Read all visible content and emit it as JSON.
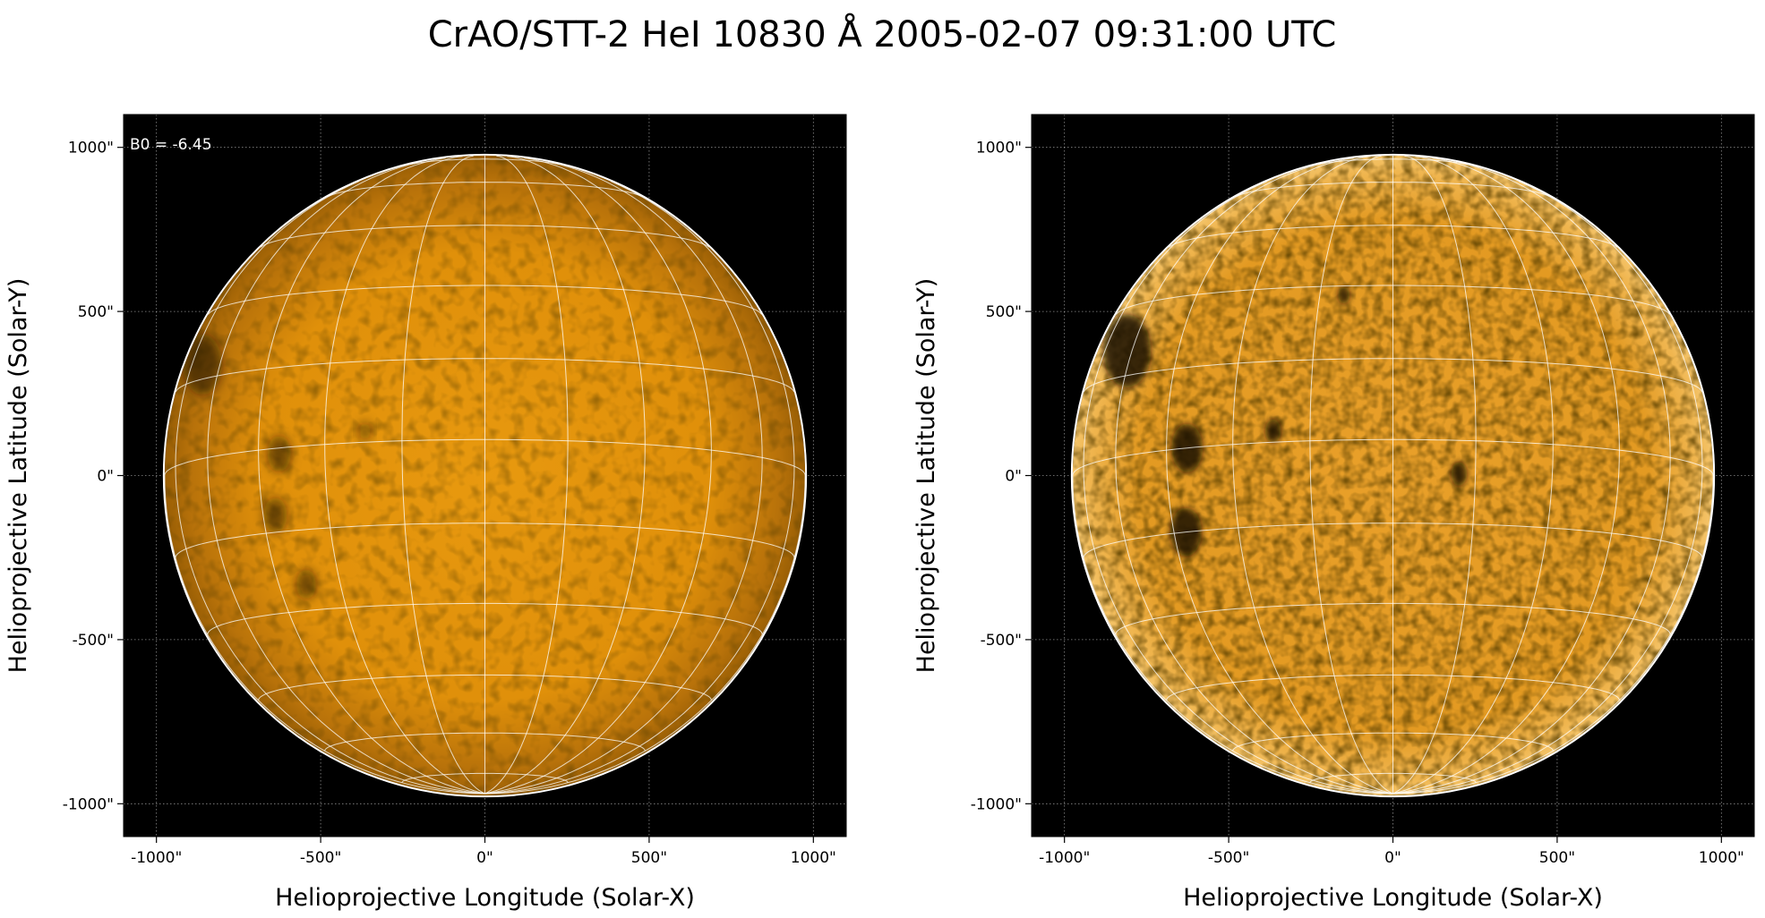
{
  "figure": {
    "title": "CrAO/STT-2 HeI 10830 Å 2005-02-07 09:31:00 UTC"
  },
  "colors": {
    "background": "#000000",
    "disk_base": "#e0900a",
    "disk_limb": "#9a5f05",
    "grid_line": "#ffffff",
    "limb_circle": "#ffffff",
    "dark_feature": "#1a0d02"
  },
  "chart_data": [
    {
      "type": "heatmap",
      "panel": "left",
      "title": "",
      "xlabel": "Helioprojective Longitude (Solar-X)",
      "ylabel": "Helioprojective Latitude (Solar-Y)",
      "xlim": [
        -1100,
        1100
      ],
      "ylim": [
        -1100,
        1100
      ],
      "xticks": [
        {
          "value": -1000,
          "label": "-1000\""
        },
        {
          "value": -500,
          "label": "-500\""
        },
        {
          "value": 0,
          "label": "0\""
        },
        {
          "value": 500,
          "label": "500\""
        },
        {
          "value": 1000,
          "label": "1000\""
        }
      ],
      "yticks": [
        {
          "value": 1000,
          "label": "1000\""
        },
        {
          "value": 500,
          "label": "500\""
        },
        {
          "value": 0,
          "label": "0\""
        },
        {
          "value": -500,
          "label": "-500\""
        },
        {
          "value": -1000,
          "label": "-1000\""
        }
      ],
      "grid": true,
      "annotation": "B0 = -6.45",
      "colormap": "orange heat",
      "contrast": "normal",
      "solar_radius_arcsec": 975,
      "b0_deg": -6.45,
      "grid_spacing_deg": 15,
      "dark_features": [
        {
          "lon": -68,
          "lat": 18,
          "size": 1.0
        },
        {
          "lon": -40,
          "lat": -1,
          "size": 0.6
        },
        {
          "lon": -42,
          "lat": -12,
          "size": 0.6
        },
        {
          "lon": -22,
          "lat": 2,
          "size": 0.3
        },
        {
          "lon": -38,
          "lat": -25,
          "size": 0.5
        }
      ]
    },
    {
      "type": "heatmap",
      "panel": "right",
      "title": "",
      "xlabel": "Helioprojective Longitude (Solar-X)",
      "ylabel": "Helioprojective Latitude (Solar-Y)",
      "xlim": [
        -1100,
        1100
      ],
      "ylim": [
        -1100,
        1100
      ],
      "xticks": [
        {
          "value": -1000,
          "label": "-1000\""
        },
        {
          "value": -500,
          "label": "-500\""
        },
        {
          "value": 0,
          "label": "0\""
        },
        {
          "value": 500,
          "label": "500\""
        },
        {
          "value": 1000,
          "label": "1000\""
        }
      ],
      "yticks": [
        {
          "value": 1000,
          "label": "1000\""
        },
        {
          "value": 500,
          "label": "500\""
        },
        {
          "value": 0,
          "label": "0\""
        },
        {
          "value": -500,
          "label": "-500\""
        },
        {
          "value": -1000,
          "label": "-1000\""
        }
      ],
      "grid": true,
      "colormap": "orange heat",
      "contrast": "enhanced",
      "solar_radius_arcsec": 975,
      "b0_deg": -6.45,
      "grid_spacing_deg": 15,
      "dark_features": [
        {
          "lon": -62,
          "lat": 20,
          "size": 1.2
        },
        {
          "lon": -40,
          "lat": 0,
          "size": 0.8
        },
        {
          "lon": -42,
          "lat": -15,
          "size": 0.8
        },
        {
          "lon": -22,
          "lat": 2,
          "size": 0.4
        },
        {
          "lon": -10,
          "lat": 28,
          "size": 0.3
        },
        {
          "lon": 12,
          "lat": -6,
          "size": 0.4
        }
      ]
    }
  ]
}
